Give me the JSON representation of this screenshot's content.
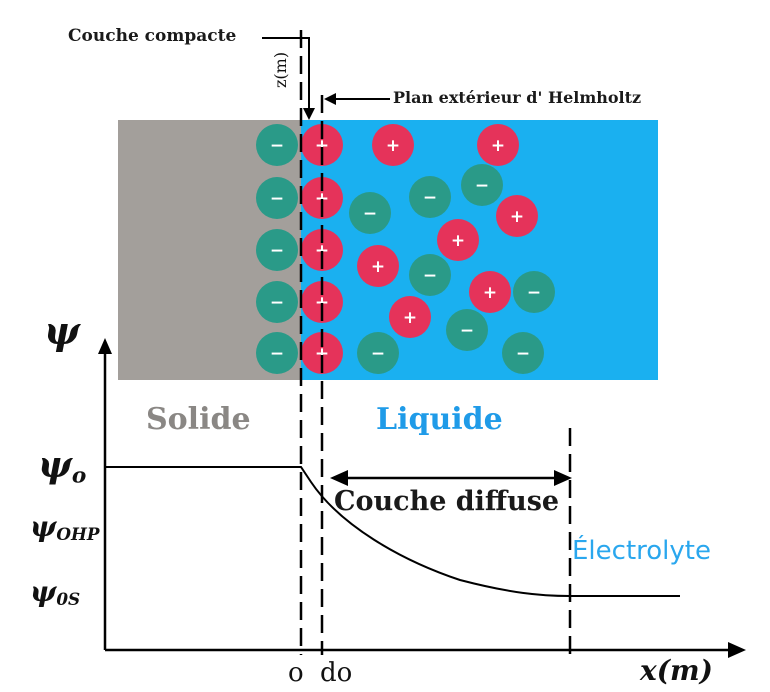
{
  "labels": {
    "couche_compacte": "Couche compacte",
    "plan_exterieur": "Plan extérieur d' Helmholtz",
    "z_axis": "z(m)",
    "solide": "Solide",
    "liquide": "Liquide",
    "couche_diffuse": "Couche diffuse",
    "electrolyte": "Électrolyte",
    "x_axis": "x(m)",
    "tick_o": "o",
    "tick_do": "do",
    "psi_symbol": "ψ",
    "psi0_base": "ψ",
    "psi0_sub": "o",
    "psi_ohp_base": "ψ",
    "psi_ohp_sub": "OHP",
    "psi_os_base": "ψ",
    "psi_os_sub": "0S",
    "ion_plus": "+",
    "ion_minus": "−"
  },
  "colors": {
    "solid": "#a39f9b",
    "liquid": "#1ab0f0",
    "cation": "#e5335a",
    "anion": "#2a9a88",
    "solide_text": "#8a8784",
    "liquide_text": "#1f9be8",
    "electrolyte_text": "#2aa7ee",
    "line": "#000000"
  }
}
